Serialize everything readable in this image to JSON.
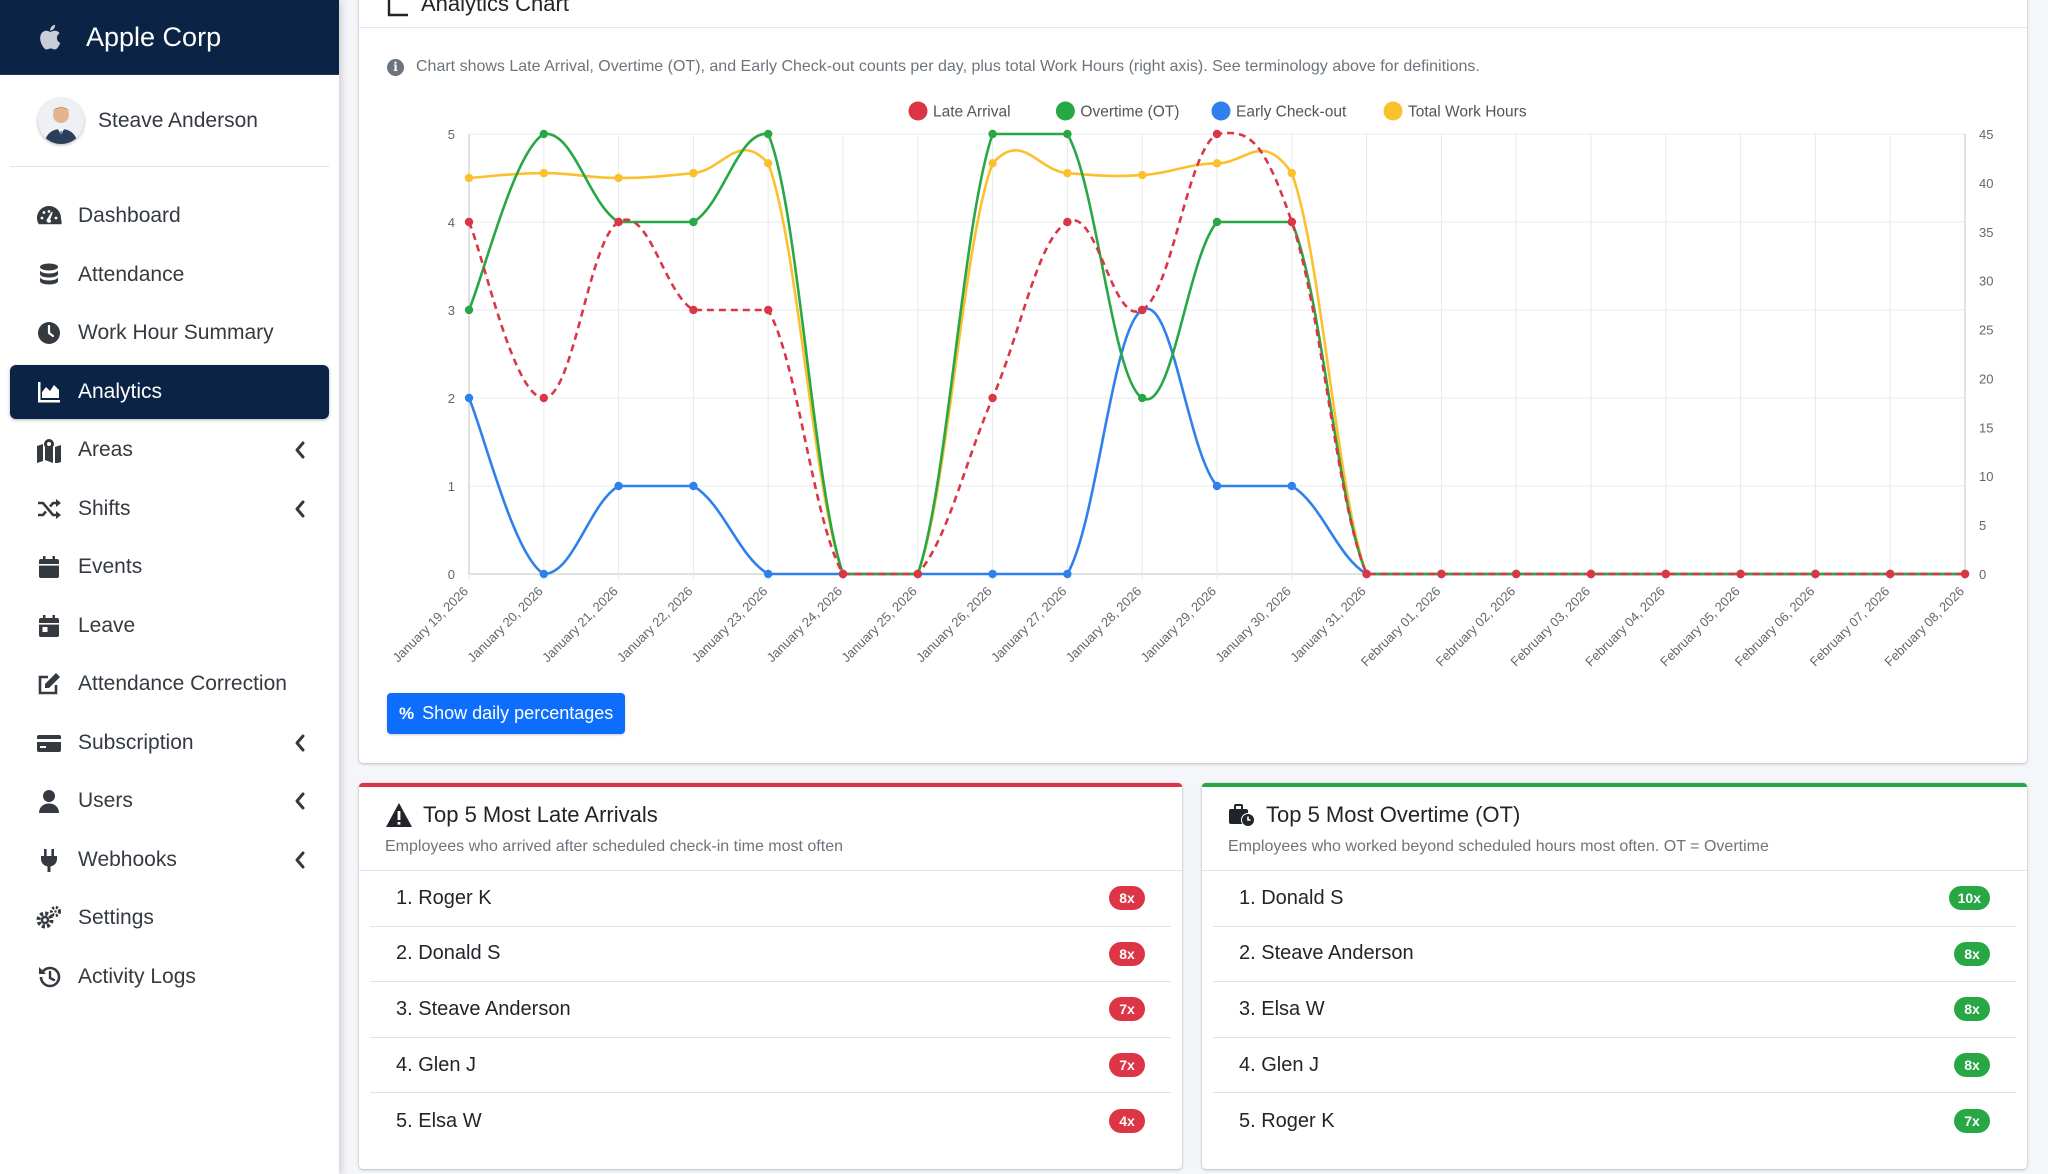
{
  "brand": {
    "name": "Apple Corp"
  },
  "user": {
    "name": "Steave Anderson"
  },
  "sidebar": {
    "items": [
      {
        "label": "Dashboard",
        "icon": "gauge-icon"
      },
      {
        "label": "Attendance",
        "icon": "database-icon"
      },
      {
        "label": "Work Hour Summary",
        "icon": "clock-icon"
      },
      {
        "label": "Analytics",
        "icon": "area-chart-icon",
        "active": true
      },
      {
        "label": "Areas",
        "icon": "map-marker-icon",
        "expandable": true
      },
      {
        "label": "Shifts",
        "icon": "shuffle-icon",
        "expandable": true
      },
      {
        "label": "Events",
        "icon": "calendar-icon"
      },
      {
        "label": "Leave",
        "icon": "calendar-day-icon"
      },
      {
        "label": "Attendance Correction",
        "icon": "edit-icon"
      },
      {
        "label": "Subscription",
        "icon": "credit-card-icon",
        "expandable": true
      },
      {
        "label": "Users",
        "icon": "user-icon",
        "expandable": true
      },
      {
        "label": "Webhooks",
        "icon": "plug-icon",
        "expandable": true
      },
      {
        "label": "Settings",
        "icon": "cogs-icon"
      },
      {
        "label": "Activity Logs",
        "icon": "history-icon"
      }
    ]
  },
  "chart_card": {
    "title": "Analytics Chart",
    "note": "Chart shows Late Arrival, Overtime (OT), and Early Check-out counts per day, plus total Work Hours (right axis). See terminology above for definitions.",
    "button_label": "Show daily percentages"
  },
  "chart_data": {
    "type": "line",
    "x": [
      "January 19, 2026",
      "January 20, 2026",
      "January 21, 2026",
      "January 22, 2026",
      "January 23, 2026",
      "January 24, 2026",
      "January 25, 2026",
      "January 26, 2026",
      "January 27, 2026",
      "January 28, 2026",
      "January 29, 2026",
      "January 30, 2026",
      "January 31, 2026",
      "February 01, 2026",
      "February 02, 2026",
      "February 03, 2026",
      "February 04, 2026",
      "February 05, 2026",
      "February 06, 2026",
      "February 07, 2026",
      "February 08, 2026"
    ],
    "y_left_ticks": [
      "0",
      "1",
      "2",
      "3",
      "4",
      "5"
    ],
    "y_right_ticks": [
      "0",
      "5",
      "10",
      "15",
      "20",
      "25",
      "30",
      "35",
      "40",
      "45"
    ],
    "ylim": [
      0,
      5
    ],
    "ylim_right": [
      0,
      45
    ],
    "grid": true,
    "legend_position": "top-center",
    "series": [
      {
        "name": "Late Arrival",
        "color": "#dc3545",
        "dashed": true,
        "axis": "left",
        "values": [
          4,
          2,
          4,
          3,
          3,
          0,
          0,
          2,
          4,
          3,
          5,
          4,
          0,
          0,
          0,
          0,
          0,
          0,
          0,
          0,
          0
        ]
      },
      {
        "name": "Overtime (OT)",
        "color": "#28a745",
        "dashed": false,
        "axis": "left",
        "values": [
          3,
          5,
          4,
          4,
          5,
          0,
          0,
          5,
          5,
          2,
          4,
          4,
          0,
          0,
          0,
          0,
          0,
          0,
          0,
          0,
          0
        ]
      },
      {
        "name": "Early Check-out",
        "color": "#2f80ed",
        "dashed": false,
        "axis": "left",
        "values": [
          2,
          0,
          1,
          1,
          0,
          0,
          0,
          0,
          0,
          3,
          1,
          1,
          0,
          0,
          0,
          0,
          0,
          0,
          0,
          0,
          0
        ]
      },
      {
        "name": "Total Work Hours",
        "color": "#fbc02d",
        "dashed": false,
        "axis": "right",
        "values": [
          40.5,
          41,
          40.5,
          41,
          42,
          0,
          0,
          42,
          41,
          40.8,
          42,
          41,
          0,
          0,
          0,
          0,
          0,
          0,
          0,
          0,
          0
        ]
      }
    ]
  },
  "late_card": {
    "title": "Top 5 Most Late Arrivals",
    "subtitle": "Employees who arrived after scheduled check-in time most often",
    "color": "#dc3545",
    "rows": [
      {
        "name": "1. Roger K",
        "count": "8x"
      },
      {
        "name": "2. Donald S",
        "count": "8x"
      },
      {
        "name": "3. Steave Anderson",
        "count": "7x"
      },
      {
        "name": "4. Glen J",
        "count": "7x"
      },
      {
        "name": "5. Elsa W",
        "count": "4x"
      }
    ]
  },
  "ot_card": {
    "title": "Top 5 Most Overtime (OT)",
    "subtitle": "Employees who worked beyond scheduled hours most often. OT = Overtime",
    "color": "#28a745",
    "rows": [
      {
        "name": "1. Donald S",
        "count": "10x"
      },
      {
        "name": "2. Steave Anderson",
        "count": "8x"
      },
      {
        "name": "3. Elsa W",
        "count": "8x"
      },
      {
        "name": "4. Glen J",
        "count": "8x"
      },
      {
        "name": "5. Roger K",
        "count": "7x"
      }
    ]
  }
}
